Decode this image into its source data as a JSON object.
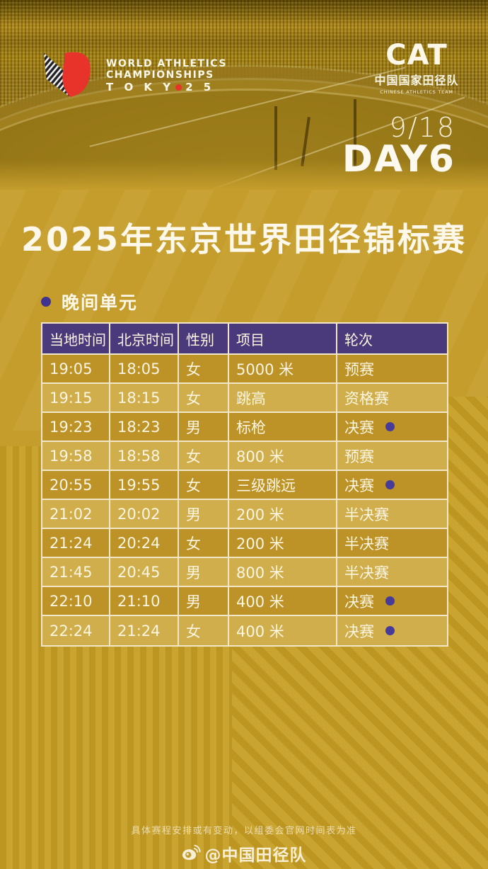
{
  "header": {
    "world_athletics_logo": {
      "line1": "WORLD ATHLETICS",
      "line2": "CHAMPIONSHIPS",
      "line3_prefix": "T O K Y",
      "line3_suffix": "2 5"
    },
    "cat_logo": {
      "acronym": "CAT",
      "name_cn": "中国国家田径队",
      "name_en": "CHINESE ATHLETICS TEAM"
    },
    "date": "9/18",
    "day": "DAY6"
  },
  "title": "2025年东京世界田径锦标赛",
  "session": {
    "label": "晚间单元"
  },
  "table": {
    "columns": [
      "当地时间",
      "北京时间",
      "性别",
      "项目",
      "轮次"
    ],
    "rows": [
      {
        "local": "19:05",
        "beijing": "18:05",
        "gender": "女",
        "event": "5000 米",
        "round": "预赛",
        "final": false
      },
      {
        "local": "19:15",
        "beijing": "18:15",
        "gender": "女",
        "event": "跳高",
        "round": "资格赛",
        "final": false
      },
      {
        "local": "19:23",
        "beijing": "18:23",
        "gender": "男",
        "event": "标枪",
        "round": "决赛",
        "final": true
      },
      {
        "local": "19:58",
        "beijing": "18:58",
        "gender": "女",
        "event": "800 米",
        "round": "预赛",
        "final": false
      },
      {
        "local": "20:55",
        "beijing": "19:55",
        "gender": "女",
        "event": "三级跳远",
        "round": "决赛",
        "final": true
      },
      {
        "local": "21:02",
        "beijing": "20:02",
        "gender": "男",
        "event": "200 米",
        "round": "半决赛",
        "final": false
      },
      {
        "local": "21:24",
        "beijing": "20:24",
        "gender": "女",
        "event": "200 米",
        "round": "半决赛",
        "final": false
      },
      {
        "local": "21:45",
        "beijing": "20:45",
        "gender": "男",
        "event": "800 米",
        "round": "半决赛",
        "final": false
      },
      {
        "local": "22:10",
        "beijing": "21:10",
        "gender": "男",
        "event": "400 米",
        "round": "决赛",
        "final": true
      },
      {
        "local": "22:24",
        "beijing": "21:24",
        "gender": "女",
        "event": "400 米",
        "round": "决赛",
        "final": true
      }
    ]
  },
  "footer": {
    "disclaimer": "具体赛程安排或有变动，以组委会官网时间表为准",
    "weibo_handle": "@中国田径队"
  },
  "colors": {
    "background_gold": "#c49d2c",
    "row_dark_gold": "#bd9327",
    "row_light_gold": "#d0ae4b",
    "table_header_purple": "#4a397b",
    "accent_dot_purple": "#43368f",
    "border_cream": "#f1e6c8",
    "text_white": "#fdf6e3",
    "logo_red": "#e8332a"
  }
}
